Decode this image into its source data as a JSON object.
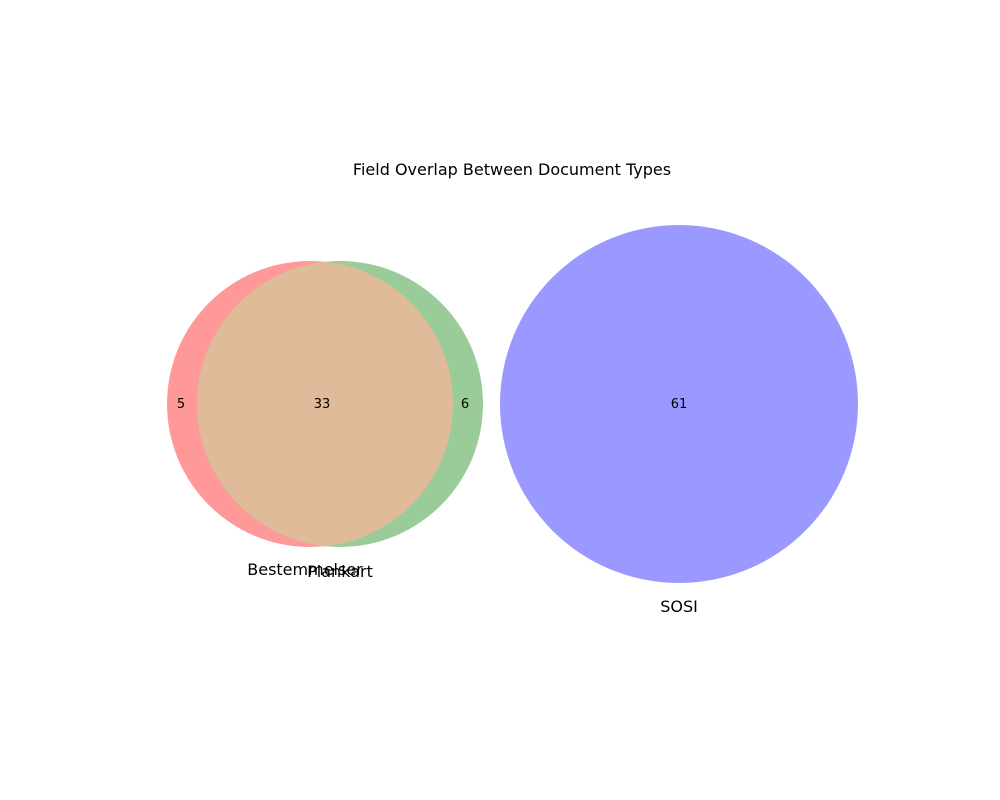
{
  "chart_data": {
    "type": "venn",
    "title": "Field Overlap Between Document Types",
    "sets": [
      {
        "name": "Bestemmelser",
        "color": "#ff9999",
        "key": "A"
      },
      {
        "name": "Plankart",
        "color": "#99cc99",
        "key": "B"
      },
      {
        "name": "SOSI",
        "color": "#9999ff",
        "key": "C"
      }
    ],
    "regions": [
      {
        "sets": [
          "Bestemmelser"
        ],
        "value": 5
      },
      {
        "sets": [
          "Bestemmelser",
          "Plankart"
        ],
        "value": 33
      },
      {
        "sets": [
          "Plankart"
        ],
        "value": 6
      },
      {
        "sets": [
          "SOSI"
        ],
        "value": 61
      }
    ],
    "overlap_color": "#e0bb99"
  }
}
